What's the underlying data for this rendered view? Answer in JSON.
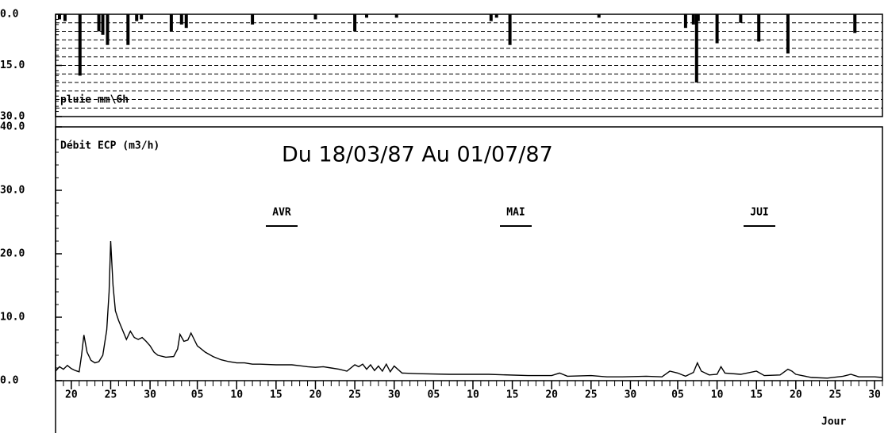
{
  "chart_data": [
    {
      "type": "bar",
      "ylabel": "pluie mm\\6h",
      "color": "#000000",
      "x": [
        0.5,
        1.2,
        3.1,
        5.5,
        6.0,
        6.6,
        9.2,
        10.3,
        10.9,
        14.7,
        16.0,
        16.6,
        25.0,
        33.0,
        38.0,
        39.5,
        43.3,
        55.3,
        56.0,
        57.7,
        69.0,
        80.0,
        81.0,
        81.6,
        81.4,
        84.0,
        87.0,
        89.3,
        93.0,
        101.5
      ],
      "values": [
        1.5,
        2,
        18,
        5,
        6,
        9,
        9,
        2,
        1.5,
        5,
        3,
        4,
        3,
        1.5,
        5,
        1,
        1,
        2,
        1,
        9,
        1,
        4,
        3,
        2,
        20,
        8.5,
        2.5,
        8,
        11.5,
        5.5
      ],
      "xlim": [
        0,
        105
      ],
      "ylim": [
        0,
        30
      ],
      "y_inverted": true,
      "yticks": [
        {
          "value": 0,
          "label": "0.0"
        },
        {
          "value": 15,
          "label": "15.0"
        },
        {
          "value": 30,
          "label": "30.0"
        }
      ],
      "ygrid": [
        2.5,
        5,
        7.5,
        10,
        12.5,
        15,
        17.5,
        20,
        22.5,
        25,
        27.5
      ],
      "grid": true
    },
    {
      "type": "line",
      "title": "Du 18/03/87 Au 01/07/87",
      "ylabel": "Débit ECP (m3/h)",
      "xlabel": "Jour",
      "color": "#000000",
      "x": [
        0,
        0.5,
        1,
        1.5,
        2,
        2.5,
        3,
        3.3,
        3.6,
        4,
        4.5,
        5,
        5.5,
        6,
        6.5,
        6.8,
        7,
        7.3,
        7.6,
        8,
        8.5,
        9,
        9.5,
        10,
        10.5,
        11,
        11.5,
        12,
        12.5,
        13,
        14,
        15,
        15.5,
        15.8,
        16.3,
        16.8,
        17.2,
        17.6,
        18,
        19,
        20,
        21,
        22,
        23,
        24,
        25,
        26,
        28,
        30,
        32,
        33,
        34,
        35,
        36,
        37,
        38,
        38.5,
        39,
        39.5,
        40,
        40.5,
        41,
        41.5,
        42,
        42.5,
        43,
        44,
        46,
        50,
        55,
        60,
        63,
        64,
        65,
        68,
        70,
        72,
        75,
        77,
        78,
        79,
        80,
        81,
        81.5,
        82,
        83,
        84,
        84.5,
        85,
        87,
        89,
        90,
        92,
        93,
        93.5,
        94,
        96,
        98,
        100,
        101,
        102,
        104,
        105
      ],
      "values": [
        1.5,
        2.2,
        1.8,
        2.4,
        1.9,
        1.6,
        1.4,
        4,
        7.2,
        4.5,
        3.2,
        2.8,
        3,
        4,
        8,
        14,
        22,
        15,
        11,
        9.5,
        8,
        6.5,
        7.8,
        6.8,
        6.5,
        6.8,
        6.2,
        5.5,
        4.5,
        4,
        3.7,
        3.8,
        5,
        7.3,
        6.2,
        6.4,
        7.5,
        6.5,
        5.5,
        4.5,
        3.8,
        3.3,
        3,
        2.8,
        2.8,
        2.6,
        2.6,
        2.5,
        2.5,
        2.2,
        2.1,
        2.2,
        2,
        1.8,
        1.5,
        2.5,
        2.2,
        2.6,
        1.8,
        2.5,
        1.6,
        2.3,
        1.5,
        2.6,
        1.4,
        2.3,
        1.2,
        1.1,
        1,
        1,
        0.8,
        0.8,
        1.2,
        0.7,
        0.8,
        0.6,
        0.6,
        0.7,
        0.6,
        1.5,
        1.2,
        0.7,
        1.3,
        2.8,
        1.5,
        0.9,
        1,
        2.2,
        1.2,
        1,
        1.5,
        0.8,
        0.9,
        1.8,
        1.5,
        1,
        0.5,
        0.4,
        0.7,
        1,
        0.6,
        0.6,
        0.5
      ],
      "xlim": [
        0,
        105
      ],
      "ylim": [
        0,
        40
      ],
      "xticks": [
        {
          "value": 2,
          "label": "20"
        },
        {
          "value": 7,
          "label": "25"
        },
        {
          "value": 12,
          "label": "30"
        },
        {
          "value": 18,
          "label": "05"
        },
        {
          "value": 23,
          "label": "10"
        },
        {
          "value": 28,
          "label": "15"
        },
        {
          "value": 33,
          "label": "20"
        },
        {
          "value": 38,
          "label": "25"
        },
        {
          "value": 43,
          "label": "30"
        },
        {
          "value": 48,
          "label": "05"
        },
        {
          "value": 53,
          "label": "10"
        },
        {
          "value": 58,
          "label": "15"
        },
        {
          "value": 63,
          "label": "20"
        },
        {
          "value": 68,
          "label": "25"
        },
        {
          "value": 73,
          "label": "30"
        },
        {
          "value": 79,
          "label": "05"
        },
        {
          "value": 84,
          "label": "10"
        },
        {
          "value": 89,
          "label": "15"
        },
        {
          "value": 94,
          "label": "20"
        },
        {
          "value": 99,
          "label": "25"
        },
        {
          "value": 104,
          "label": "30"
        }
      ],
      "yticks": [
        {
          "value": 0,
          "label": "0.0"
        },
        {
          "value": 10,
          "label": "10.0"
        },
        {
          "value": 20,
          "label": "20.0"
        },
        {
          "value": 30,
          "label": "30.0"
        },
        {
          "value": 40,
          "label": "40.0"
        }
      ],
      "annotations": [
        "AVR",
        "MAI",
        "JUI"
      ]
    }
  ]
}
